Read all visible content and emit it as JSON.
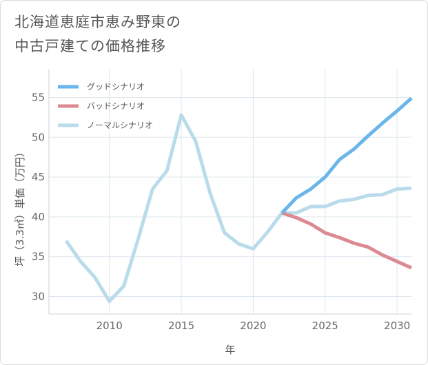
{
  "title_lines": [
    "北海道恵庭市恵み野東の",
    "中古戸建ての価格推移"
  ],
  "chart_data": {
    "type": "line",
    "title": "北海道恵庭市恵み野東の中古戸建ての価格推移",
    "xlabel": "年",
    "ylabel": "坪（3.3㎡）単価（万円）",
    "xlim": [
      2005.8,
      2031
    ],
    "ylim": [
      27.8,
      58.5
    ],
    "xticks": [
      2010,
      2015,
      2020,
      2025,
      2030
    ],
    "yticks": [
      30,
      35,
      40,
      45,
      50,
      55
    ],
    "grid": true,
    "legend_position": "top-left",
    "series": [
      {
        "name": "グッドシナリオ",
        "color": "#6ab6ea",
        "x": [
          2022,
          2023,
          2024,
          2025,
          2026,
          2027,
          2028,
          2029,
          2030,
          2031
        ],
        "values": [
          40.5,
          42.4,
          43.5,
          45.0,
          47.2,
          48.5,
          50.2,
          51.8,
          53.3,
          54.9
        ]
      },
      {
        "name": "バッドシナリオ",
        "color": "#dc8a92",
        "x": [
          2022,
          2023,
          2024,
          2025,
          2026,
          2027,
          2028,
          2029,
          2030,
          2031
        ],
        "values": [
          40.5,
          39.9,
          39.1,
          38.0,
          37.4,
          36.7,
          36.2,
          35.2,
          34.4,
          33.6
        ]
      },
      {
        "name": "ノーマルシナリオ",
        "color": "#b9dbea",
        "x": [
          2007,
          2008,
          2009,
          2010,
          2011,
          2012,
          2013,
          2014,
          2015,
          2016,
          2017,
          2018,
          2019,
          2020,
          2021,
          2022,
          2023,
          2024,
          2025,
          2026,
          2027,
          2028,
          2029,
          2030,
          2031
        ],
        "values": [
          37.0,
          34.4,
          32.4,
          29.4,
          31.3,
          37.2,
          43.5,
          45.8,
          52.8,
          49.5,
          43.0,
          38.0,
          36.6,
          36.0,
          38.1,
          40.5,
          40.5,
          41.3,
          41.3,
          42.0,
          42.2,
          42.7,
          42.8,
          43.5,
          43.6
        ]
      }
    ]
  }
}
